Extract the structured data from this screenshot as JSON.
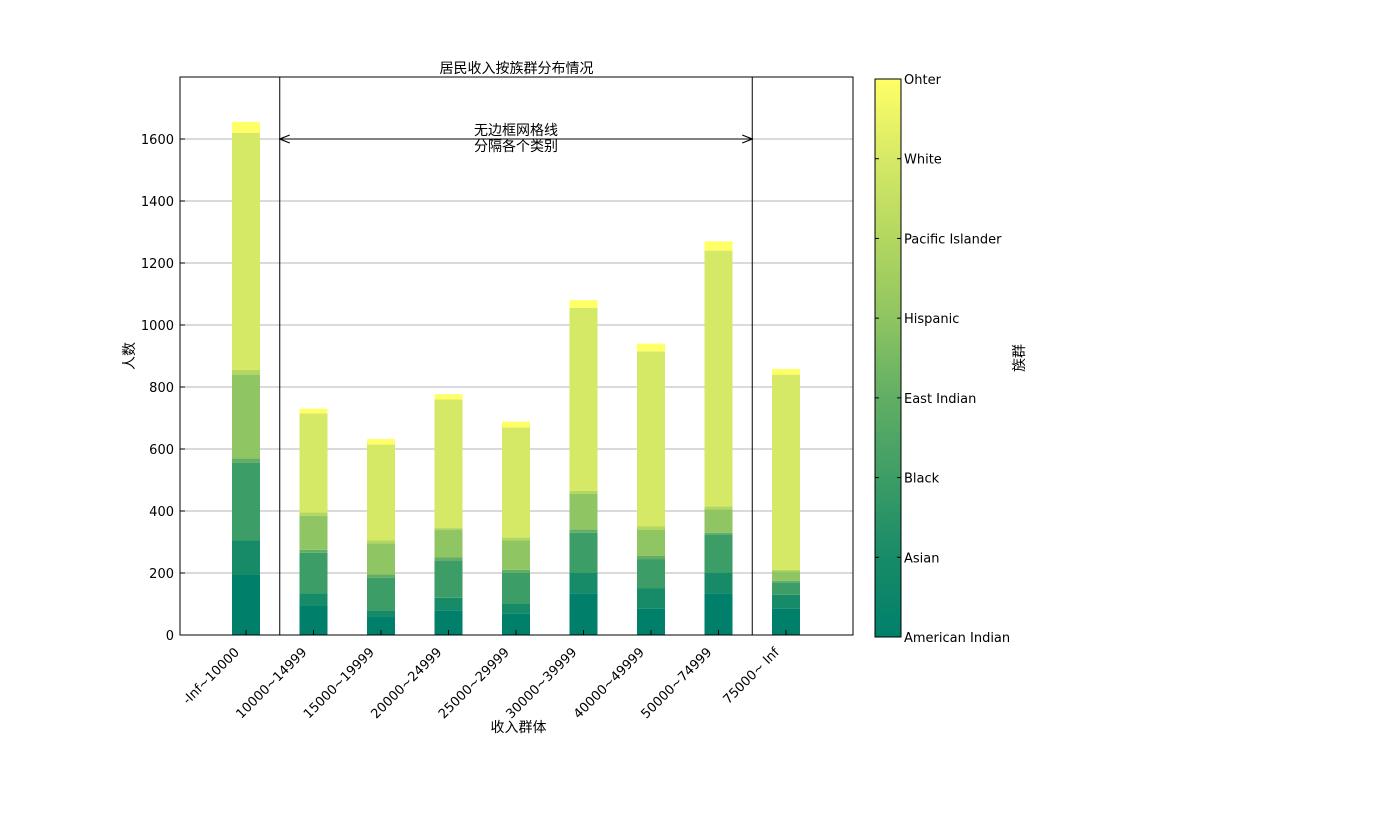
{
  "chart_data": {
    "type": "bar",
    "stacked": true,
    "title": "居民收入按族群分布情况",
    "xlabel": "收入群体",
    "ylabel": "人数",
    "ylim": [
      0,
      1800
    ],
    "yticks": [
      0,
      200,
      400,
      600,
      800,
      1000,
      1200,
      1400,
      1600
    ],
    "grid": "horizontal",
    "categories": [
      "-Inf~10000",
      "10000~14999",
      "15000~19999",
      "20000~24999",
      "25000~29999",
      "30000~39999",
      "40000~49999",
      "50000~74999",
      "75000~ Inf"
    ],
    "series": [
      {
        "name": "American Indian",
        "color": "#00806a",
        "values": [
          195,
          95,
          58,
          80,
          70,
          135,
          85,
          135,
          85
        ]
      },
      {
        "name": "Asian",
        "color": "#178b68",
        "values": [
          110,
          40,
          22,
          40,
          30,
          65,
          65,
          65,
          45
        ]
      },
      {
        "name": "Black",
        "color": "#3d9d66",
        "values": [
          250,
          130,
          105,
          120,
          100,
          130,
          95,
          125,
          40
        ]
      },
      {
        "name": "East Indian",
        "color": "#61ae64",
        "values": [
          15,
          10,
          10,
          10,
          10,
          10,
          10,
          5,
          5
        ]
      },
      {
        "name": "Hispanic",
        "color": "#8fc562",
        "values": [
          270,
          110,
          100,
          90,
          95,
          115,
          85,
          75,
          30
        ]
      },
      {
        "name": "Pacific Islander",
        "color": "#b3d75f",
        "values": [
          15,
          10,
          10,
          5,
          10,
          10,
          10,
          10,
          5
        ]
      },
      {
        "name": "White",
        "color": "#d6e966",
        "values": [
          765,
          320,
          310,
          415,
          355,
          590,
          565,
          825,
          630
        ]
      },
      {
        "name": "Ohter",
        "color": "#ffff66",
        "values": [
          35,
          15,
          17,
          17,
          18,
          25,
          25,
          30,
          18
        ]
      }
    ],
    "colorbar": {
      "label": "族群",
      "ticks": [
        "American Indian",
        "Asian",
        "Black",
        "East Indian",
        "Hispanic",
        "Pacific Islander",
        "White",
        "Ohter"
      ],
      "colors": [
        "#00806a",
        "#178b68",
        "#3d9d66",
        "#61ae64",
        "#8fc562",
        "#b3d75f",
        "#d6e966",
        "#ffff66"
      ]
    },
    "annotation": {
      "lines": [
        "无边框网格线",
        "分隔各个类别"
      ],
      "arrow_from_category_index": 1,
      "arrow_to_category_index": 8,
      "arrow_y": 1600
    },
    "separators_after_category_index": [
      0,
      7
    ]
  }
}
